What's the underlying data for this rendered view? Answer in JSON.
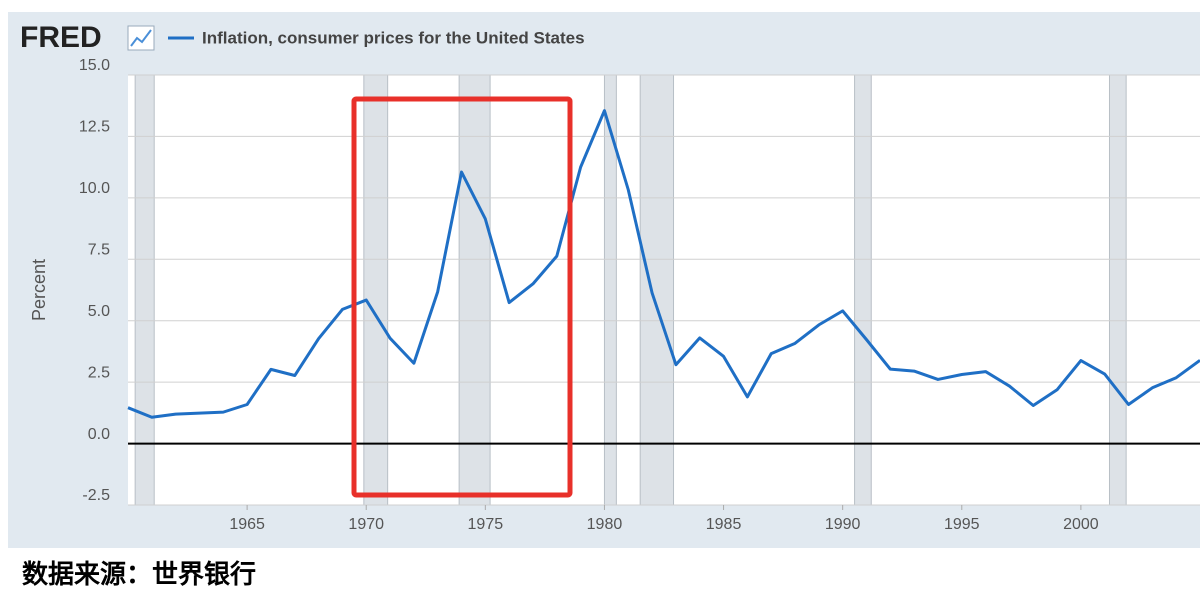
{
  "chart_data": {
    "type": "line",
    "brand": "FRED",
    "source": "数据来源：世界银行",
    "ylabel": "Percent",
    "x": [
      1960,
      1961,
      1962,
      1963,
      1964,
      1965,
      1966,
      1967,
      1968,
      1969,
      1970,
      1971,
      1972,
      1973,
      1974,
      1975,
      1976,
      1977,
      1978,
      1979,
      1980,
      1981,
      1982,
      1983,
      1984,
      1985,
      1986,
      1987,
      1988,
      1989,
      1990,
      1991,
      1992,
      1993,
      1994,
      1995,
      1996,
      1997,
      1998,
      1999,
      2000,
      2001,
      2002,
      2003,
      2004,
      2005
    ],
    "series": [
      {
        "name": "Inflation, consumer prices for the United States",
        "color": "#1f6fc5",
        "values": [
          1.46,
          1.07,
          1.2,
          1.24,
          1.28,
          1.59,
          3.02,
          2.77,
          4.27,
          5.46,
          5.84,
          4.29,
          3.27,
          6.18,
          11.05,
          9.14,
          5.74,
          6.5,
          7.63,
          11.25,
          13.55,
          10.33,
          6.13,
          3.21,
          4.3,
          3.55,
          1.9,
          3.66,
          4.08,
          4.83,
          5.4,
          4.23,
          3.03,
          2.95,
          2.61,
          2.81,
          2.93,
          2.34,
          1.55,
          2.19,
          3.38,
          2.83,
          1.59,
          2.27,
          2.68,
          3.39
        ]
      }
    ],
    "recessions": [
      [
        1960.3,
        1961.1
      ],
      [
        1969.9,
        1970.9
      ],
      [
        1973.9,
        1975.2
      ],
      [
        1980.0,
        1980.5
      ],
      [
        1981.5,
        1982.9
      ],
      [
        1990.5,
        1991.2
      ],
      [
        2001.2,
        2001.9
      ]
    ],
    "xlim": [
      1960,
      2005
    ],
    "xticks": [
      1965,
      1970,
      1975,
      1980,
      1985,
      1990,
      1995,
      2000
    ],
    "ylim": [
      -2.5,
      15
    ],
    "yticks": [
      -2.5,
      {
        "value": 0,
        "label": "0.0"
      },
      2.5,
      {
        "value": 5,
        "label": "5.0"
      },
      7.5,
      {
        "value": 10,
        "label": "10.0"
      },
      12.5,
      {
        "value": 15,
        "label": "15.0"
      }
    ],
    "grid": true
  }
}
